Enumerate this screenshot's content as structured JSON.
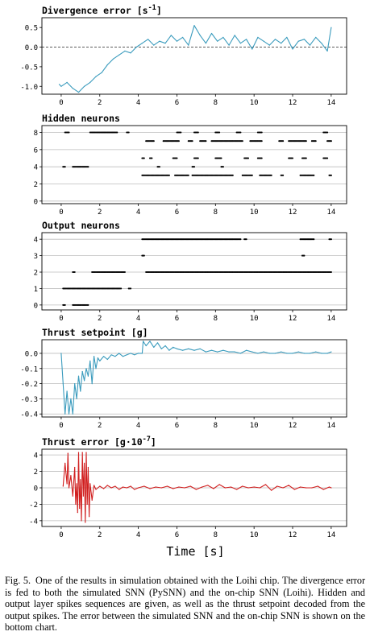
{
  "chart_data": [
    {
      "type": "line",
      "title": "Divergence error [s",
      "title_sup": "-1",
      "title_end": "]",
      "xlim": [
        -1,
        14.8
      ],
      "ylim": [
        -1.2,
        0.75
      ],
      "xticks": [
        "0",
        "2",
        "4",
        "6",
        "8",
        "10",
        "12",
        "14"
      ],
      "yticks": [
        "0.5",
        "0.0",
        "-0.5",
        "-1.0"
      ],
      "ytick_values": [
        0.5,
        0.0,
        -0.5,
        -1.0
      ],
      "grid": false,
      "reference_line_y": 0.0,
      "color": "#3a9bbd",
      "series": [
        {
          "x": [
            -0.1,
            0.0,
            0.3,
            0.6,
            0.9,
            1.2,
            1.5,
            1.8,
            2.1,
            2.4,
            2.7,
            3.0,
            3.3,
            3.6,
            3.9,
            4.2,
            4.5,
            4.8,
            5.1,
            5.4,
            5.7,
            6.0,
            6.3,
            6.6,
            6.9,
            7.2,
            7.5,
            7.8,
            8.1,
            8.4,
            8.7,
            9.0,
            9.3,
            9.6,
            9.9,
            10.2,
            10.5,
            10.8,
            11.1,
            11.4,
            11.7,
            12.0,
            12.3,
            12.6,
            12.9,
            13.2,
            13.5,
            13.8,
            14.0
          ],
          "y": [
            -0.95,
            -1.0,
            -0.9,
            -1.05,
            -1.15,
            -1.0,
            -0.9,
            -0.75,
            -0.65,
            -0.45,
            -0.3,
            -0.2,
            -0.1,
            -0.15,
            0.0,
            0.1,
            0.2,
            0.05,
            0.15,
            0.1,
            0.3,
            0.15,
            0.25,
            0.05,
            0.55,
            0.3,
            0.1,
            0.35,
            0.15,
            0.25,
            0.05,
            0.3,
            0.1,
            0.2,
            -0.05,
            0.25,
            0.15,
            0.05,
            0.2,
            0.1,
            0.25,
            -0.05,
            0.15,
            0.2,
            0.05,
            0.25,
            0.1,
            -0.1,
            0.5
          ]
        }
      ]
    },
    {
      "type": "scatter",
      "title": "Hidden neurons",
      "xlim": [
        -1,
        14.8
      ],
      "ylim": [
        -0.3,
        8.8
      ],
      "xticks": [
        "0",
        "2",
        "4",
        "6",
        "8",
        "10",
        "12",
        "14"
      ],
      "yticks": [
        "8",
        "6",
        "4",
        "2",
        "0"
      ],
      "ytick_values": [
        8,
        6,
        4,
        2,
        0
      ],
      "grid": true,
      "color": "#000000",
      "runs": [
        {
          "y": 8,
          "spans": [
            [
              0.2,
              0.4
            ],
            [
              1.5,
              2.9
            ],
            [
              3.4,
              3.5
            ],
            [
              6.0,
              6.2
            ],
            [
              6.9,
              7.1
            ],
            [
              8.0,
              8.2
            ],
            [
              9.1,
              9.3
            ],
            [
              10.2,
              10.4
            ],
            [
              13.6,
              13.8
            ]
          ]
        },
        {
          "y": 7,
          "spans": [
            [
              4.4,
              4.8
            ],
            [
              5.3,
              6.1
            ],
            [
              6.6,
              6.8
            ],
            [
              7.2,
              7.5
            ],
            [
              7.8,
              9.4
            ],
            [
              9.8,
              10.4
            ],
            [
              11.3,
              11.5
            ],
            [
              11.8,
              12.7
            ],
            [
              13.0,
              13.2
            ],
            [
              13.8,
              14.0
            ]
          ]
        },
        {
          "y": 5,
          "spans": [
            [
              4.2,
              4.3
            ],
            [
              4.6,
              4.7
            ],
            [
              5.8,
              6.0
            ],
            [
              6.9,
              7.1
            ],
            [
              8.0,
              8.3
            ],
            [
              9.5,
              9.7
            ],
            [
              10.2,
              10.4
            ],
            [
              11.8,
              12.0
            ],
            [
              12.5,
              12.7
            ],
            [
              13.6,
              13.8
            ]
          ]
        },
        {
          "y": 4,
          "spans": [
            [
              0.1,
              0.2
            ],
            [
              0.6,
              1.4
            ],
            [
              5.0,
              5.1
            ],
            [
              6.8,
              6.9
            ],
            [
              8.3,
              8.4
            ]
          ]
        },
        {
          "y": 3,
          "spans": [
            [
              4.2,
              5.6
            ],
            [
              5.9,
              6.6
            ],
            [
              6.8,
              8.9
            ],
            [
              9.4,
              9.9
            ],
            [
              10.3,
              10.9
            ],
            [
              11.4,
              11.5
            ],
            [
              12.4,
              13.1
            ],
            [
              13.9,
              14.0
            ]
          ]
        }
      ]
    },
    {
      "type": "scatter",
      "title": "Output neurons",
      "xlim": [
        -1,
        14.8
      ],
      "ylim": [
        -0.3,
        4.4
      ],
      "xticks": [
        "0",
        "2",
        "4",
        "6",
        "8",
        "10",
        "12",
        "14"
      ],
      "yticks": [
        "4",
        "3",
        "2",
        "1",
        "0"
      ],
      "ytick_values": [
        4,
        3,
        2,
        1,
        0
      ],
      "grid": true,
      "color": "#000000",
      "runs": [
        {
          "y": 4,
          "spans": [
            [
              4.2,
              9.3
            ],
            [
              9.5,
              9.6
            ],
            [
              12.4,
              13.1
            ],
            [
              13.9,
              14.0
            ]
          ]
        },
        {
          "y": 3,
          "spans": [
            [
              4.2,
              4.3
            ],
            [
              12.5,
              12.6
            ]
          ]
        },
        {
          "y": 2,
          "spans": [
            [
              0.6,
              0.7
            ],
            [
              1.6,
              3.3
            ],
            [
              4.4,
              14.0
            ]
          ]
        },
        {
          "y": 1,
          "spans": [
            [
              0.1,
              3.1
            ],
            [
              3.5,
              3.6
            ]
          ]
        },
        {
          "y": 0,
          "spans": [
            [
              0.1,
              0.2
            ],
            [
              0.6,
              1.4
            ]
          ]
        }
      ]
    },
    {
      "type": "line",
      "title": "Thrust setpoint [g]",
      "xlim": [
        -1,
        14.8
      ],
      "ylim": [
        -0.42,
        0.09
      ],
      "xticks": [
        "0",
        "2",
        "4",
        "6",
        "8",
        "10",
        "12",
        "14"
      ],
      "yticks": [
        "0.0",
        "-0.1",
        "-0.2",
        "-0.3",
        "-0.4"
      ],
      "ytick_values": [
        0.0,
        -0.1,
        -0.2,
        -0.3,
        -0.4
      ],
      "grid": true,
      "color": "#3a9bbd",
      "series": [
        {
          "x": [
            0.0,
            0.1,
            0.2,
            0.3,
            0.4,
            0.5,
            0.6,
            0.7,
            0.8,
            0.9,
            1.0,
            1.1,
            1.2,
            1.3,
            1.4,
            1.5,
            1.6,
            1.7,
            1.8,
            1.9,
            2.0,
            2.2,
            2.4,
            2.6,
            2.8,
            3.0,
            3.2,
            3.4,
            3.6,
            3.8,
            4.0,
            4.2,
            4.25,
            4.4,
            4.6,
            4.8,
            5.0,
            5.2,
            5.4,
            5.6,
            5.8,
            6.0,
            6.3,
            6.6,
            6.9,
            7.2,
            7.5,
            7.8,
            8.1,
            8.4,
            8.7,
            9.0,
            9.3,
            9.6,
            9.9,
            10.2,
            10.5,
            10.8,
            11.1,
            11.4,
            11.7,
            12.0,
            12.3,
            12.6,
            12.9,
            13.2,
            13.5,
            13.8,
            14.0
          ],
          "y": [
            0.0,
            -0.2,
            -0.4,
            -0.25,
            -0.4,
            -0.3,
            -0.4,
            -0.2,
            -0.3,
            -0.15,
            -0.25,
            -0.12,
            -0.18,
            -0.1,
            -0.15,
            -0.05,
            -0.2,
            -0.02,
            -0.1,
            -0.03,
            -0.05,
            -0.02,
            -0.04,
            -0.01,
            -0.02,
            0.0,
            -0.02,
            -0.01,
            0.0,
            -0.01,
            0.0,
            0.0,
            0.08,
            0.05,
            0.08,
            0.04,
            0.07,
            0.03,
            0.05,
            0.02,
            0.04,
            0.03,
            0.02,
            0.03,
            0.02,
            0.03,
            0.01,
            0.02,
            0.01,
            0.02,
            0.01,
            0.01,
            0.0,
            0.02,
            0.01,
            0.0,
            0.01,
            0.0,
            0.0,
            0.01,
            0.0,
            0.0,
            0.01,
            0.0,
            0.0,
            0.01,
            0.0,
            0.0,
            0.01
          ]
        }
      ]
    },
    {
      "type": "line",
      "title": "Thrust error [g·10",
      "title_sup": "-7",
      "title_end": "]",
      "xlim": [
        -1,
        14.8
      ],
      "ylim": [
        -4.7,
        4.7
      ],
      "xticks": [
        "0",
        "2",
        "4",
        "6",
        "8",
        "10",
        "12",
        "14"
      ],
      "yticks": [
        "4",
        "2",
        "0",
        "-2",
        "-4"
      ],
      "ytick_values": [
        4,
        2,
        0,
        -2,
        -4
      ],
      "grid": true,
      "color": "#d11f1f",
      "series": [
        {
          "x": [
            0.1,
            0.2,
            0.3,
            0.35,
            0.4,
            0.5,
            0.6,
            0.7,
            0.75,
            0.8,
            0.85,
            0.9,
            0.95,
            1.0,
            1.05,
            1.1,
            1.15,
            1.2,
            1.25,
            1.3,
            1.35,
            1.4,
            1.45,
            1.5,
            1.6,
            1.7,
            1.8,
            2.0,
            2.2,
            2.4,
            2.6,
            2.8,
            3.0,
            3.2,
            3.4,
            3.6,
            3.8,
            4.0,
            4.3,
            4.6,
            4.9,
            5.2,
            5.5,
            5.8,
            6.1,
            6.4,
            6.7,
            7.0,
            7.3,
            7.6,
            7.9,
            8.2,
            8.5,
            8.8,
            9.1,
            9.4,
            9.7,
            10.0,
            10.3,
            10.6,
            10.9,
            11.2,
            11.5,
            11.8,
            12.1,
            12.4,
            12.7,
            13.0,
            13.3,
            13.6,
            13.9,
            14.0
          ],
          "y": [
            0.2,
            3.0,
            0.5,
            4.2,
            0.0,
            1.5,
            -1.0,
            2.5,
            -2.0,
            0.5,
            -3.0,
            4.3,
            -2.5,
            1.0,
            -4.0,
            4.3,
            -1.0,
            3.0,
            -4.2,
            4.3,
            -2.0,
            2.5,
            -3.5,
            0.5,
            -1.5,
            0.3,
            -0.2,
            0.2,
            -0.1,
            0.3,
            0.0,
            0.2,
            -0.2,
            0.1,
            0.0,
            0.2,
            -0.2,
            0.0,
            0.2,
            -0.1,
            0.1,
            0.0,
            0.2,
            -0.1,
            0.1,
            0.0,
            0.2,
            -0.2,
            0.1,
            0.3,
            -0.1,
            0.4,
            0.0,
            0.1,
            -0.2,
            0.2,
            0.0,
            0.1,
            0.0,
            0.4,
            -0.3,
            0.2,
            0.0,
            0.3,
            -0.2,
            0.1,
            0.0,
            0.0,
            0.2,
            -0.2,
            0.1,
            0.0
          ]
        }
      ]
    }
  ],
  "xlabel": "Time [s]",
  "caption": {
    "label": "Fig. 5.",
    "text": "One of the results in simulation obtained with the Loihi chip. The divergence error is fed to both the simulated SNN (PySNN) and the on-chip SNN (Loihi). Hidden and output layer spikes sequences are given, as well as the thrust setpoint decoded from the output spikes. The error between the simulated SNN and the on-chip SNN is shown on the bottom chart."
  }
}
